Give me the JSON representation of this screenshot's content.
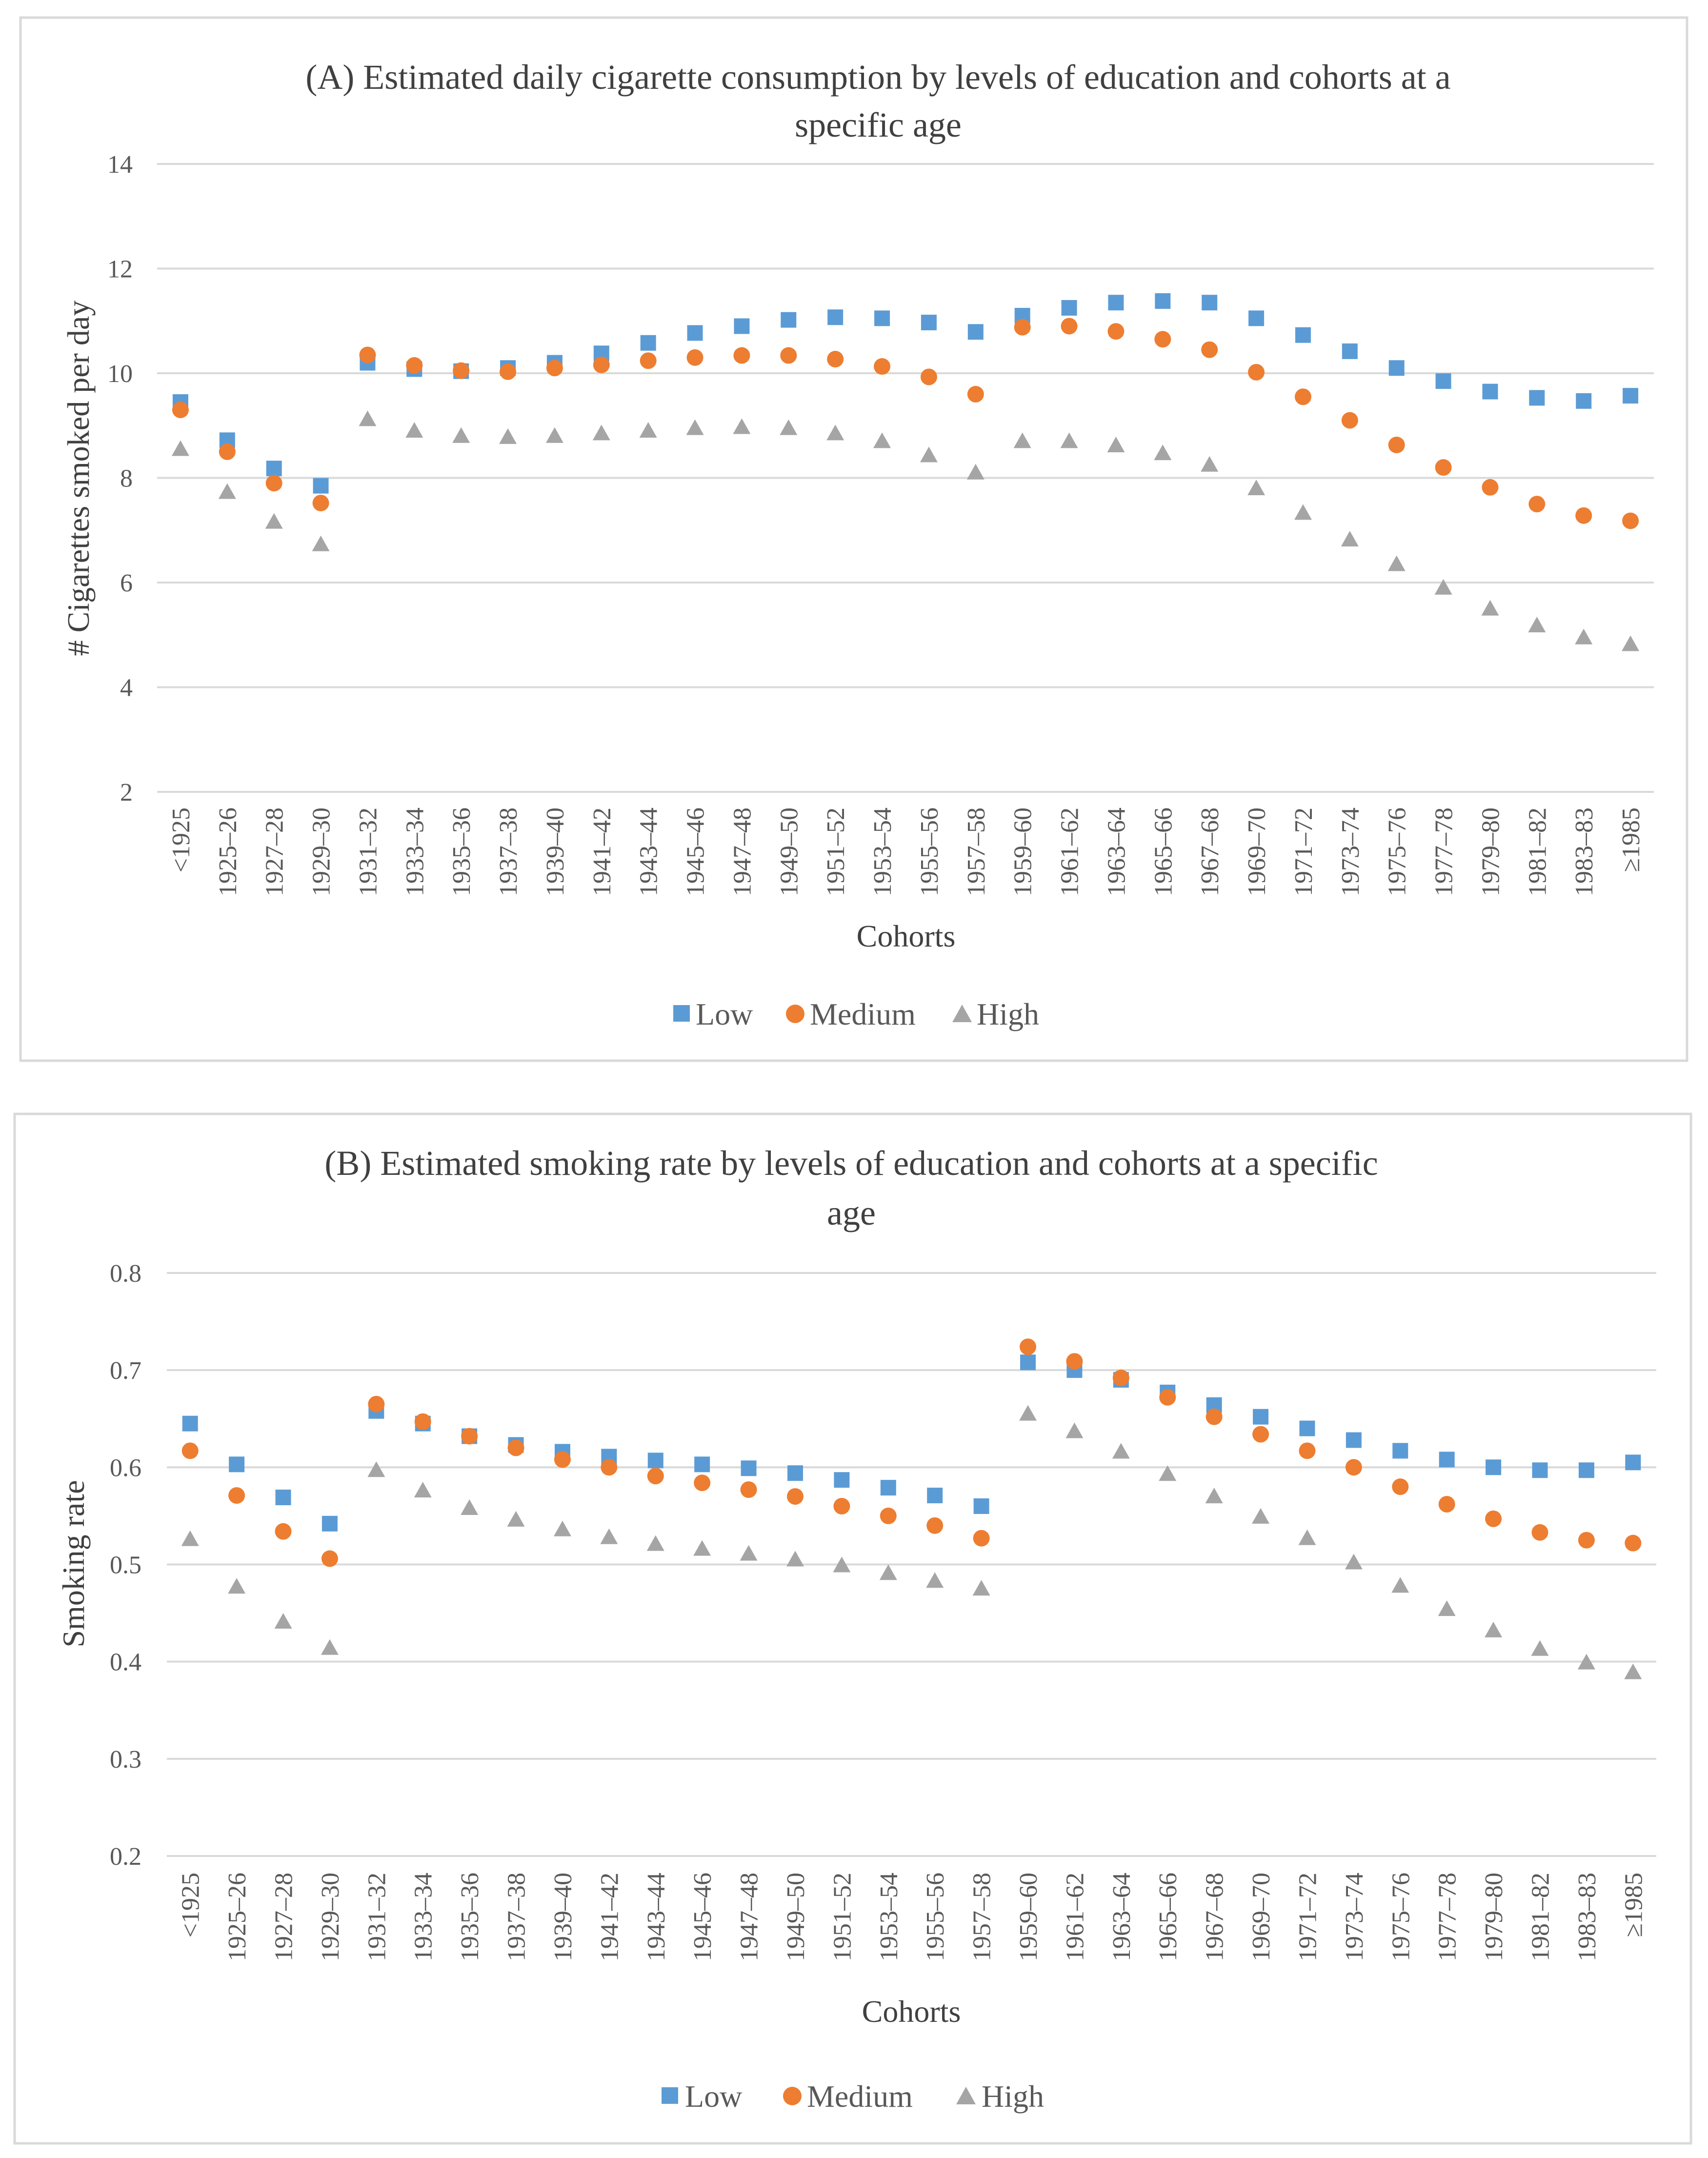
{
  "colors": {
    "low": "#5b9bd5",
    "medium": "#ed7d31",
    "high": "#a5a5a5"
  },
  "chart_data": [
    {
      "type": "scatter",
      "title_line1": "(A) Estimated daily cigarette consumption by levels of education and cohorts at a",
      "title_line2": "specific age",
      "xlabel": "Cohorts",
      "ylabel": "# Cigarettes smoked per day",
      "ylim": [
        2,
        14
      ],
      "yticks": [
        "2",
        "4",
        "6",
        "8",
        "10",
        "12",
        "14"
      ],
      "legend_position": "bottom",
      "grid": true,
      "categories": [
        "<1925",
        "1925–26",
        "1927–28",
        "1929–30",
        "1931–32",
        "1933–34",
        "1935–36",
        "1937–38",
        "1939–40",
        "1941–42",
        "1943–44",
        "1945–46",
        "1947–48",
        "1949–50",
        "1951–52",
        "1953–54",
        "1955–56",
        "1957–58",
        "1959–60",
        "1961–62",
        "1963–64",
        "1965–66",
        "1967–68",
        "1969–70",
        "1971–72",
        "1973–74",
        "1975–76",
        "1977–78",
        "1979–80",
        "1981–82",
        "1983–83",
        "≥1985"
      ],
      "series": [
        {
          "name": "Low",
          "marker": "square",
          "values": [
            9.45,
            8.72,
            8.18,
            7.85,
            10.2,
            10.08,
            10.04,
            10.1,
            10.2,
            10.38,
            10.58,
            10.77,
            10.9,
            11.02,
            11.07,
            11.05,
            10.97,
            10.79,
            11.1,
            11.25,
            11.35,
            11.38,
            11.35,
            11.05,
            10.73,
            10.42,
            10.1,
            9.85,
            9.65,
            9.53,
            9.47,
            9.57
          ]
        },
        {
          "name": "Medium",
          "marker": "circle",
          "values": [
            9.3,
            8.5,
            7.9,
            7.52,
            10.35,
            10.15,
            10.05,
            10.03,
            10.1,
            10.16,
            10.24,
            10.3,
            10.34,
            10.34,
            10.27,
            10.13,
            9.93,
            9.6,
            10.88,
            10.9,
            10.8,
            10.65,
            10.45,
            10.02,
            9.55,
            9.1,
            8.63,
            8.2,
            7.82,
            7.5,
            7.28,
            7.18
          ]
        },
        {
          "name": "High",
          "marker": "triangle",
          "values": [
            8.55,
            7.73,
            7.16,
            6.73,
            9.12,
            8.9,
            8.8,
            8.78,
            8.8,
            8.85,
            8.9,
            8.95,
            8.97,
            8.95,
            8.85,
            8.7,
            8.43,
            8.1,
            8.7,
            8.7,
            8.62,
            8.47,
            8.25,
            7.8,
            7.33,
            6.82,
            6.35,
            5.9,
            5.5,
            5.18,
            4.95,
            4.82
          ]
        }
      ]
    },
    {
      "type": "scatter",
      "title_line1": "(B) Estimated smoking rate by levels of education and cohorts at a specific",
      "title_line2": "age",
      "xlabel": "Cohorts",
      "ylabel": "Smoking rate",
      "ylim": [
        0.2,
        0.8
      ],
      "yticks": [
        "0.2",
        "0.3",
        "0.4",
        "0.5",
        "0.6",
        "0.7",
        "0.8"
      ],
      "legend_position": "bottom",
      "grid": true,
      "categories": [
        "<1925",
        "1925–26",
        "1927–28",
        "1929–30",
        "1931–32",
        "1933–34",
        "1935–36",
        "1937–38",
        "1939–40",
        "1941–42",
        "1943–44",
        "1945–46",
        "1947–48",
        "1949–50",
        "1951–52",
        "1953–54",
        "1955–56",
        "1957–58",
        "1959–60",
        "1961–62",
        "1963–64",
        "1965–66",
        "1967–68",
        "1969–70",
        "1971–72",
        "1973–74",
        "1975–76",
        "1977–78",
        "1979–80",
        "1981–82",
        "1983–83",
        "≥1985"
      ],
      "series": [
        {
          "name": "Low",
          "marker": "square",
          "values": [
            0.645,
            0.603,
            0.569,
            0.542,
            0.658,
            0.645,
            0.632,
            0.623,
            0.616,
            0.611,
            0.607,
            0.603,
            0.599,
            0.594,
            0.587,
            0.579,
            0.571,
            0.56,
            0.708,
            0.7,
            0.69,
            0.677,
            0.664,
            0.652,
            0.64,
            0.628,
            0.617,
            0.608,
            0.6,
            0.597,
            0.597,
            0.605
          ]
        },
        {
          "name": "Medium",
          "marker": "circle",
          "values": [
            0.617,
            0.571,
            0.534,
            0.506,
            0.665,
            0.647,
            0.632,
            0.62,
            0.608,
            0.6,
            0.591,
            0.584,
            0.577,
            0.57,
            0.56,
            0.55,
            0.54,
            0.527,
            0.724,
            0.709,
            0.692,
            0.672,
            0.652,
            0.634,
            0.617,
            0.6,
            0.58,
            0.562,
            0.547,
            0.533,
            0.525,
            0.522
          ]
        },
        {
          "name": "High",
          "marker": "triangle",
          "values": [
            0.526,
            0.477,
            0.441,
            0.414,
            0.597,
            0.576,
            0.558,
            0.546,
            0.536,
            0.528,
            0.521,
            0.516,
            0.511,
            0.505,
            0.499,
            0.491,
            0.483,
            0.475,
            0.655,
            0.637,
            0.616,
            0.593,
            0.57,
            0.549,
            0.527,
            0.502,
            0.478,
            0.454,
            0.432,
            0.413,
            0.399,
            0.389
          ]
        }
      ]
    }
  ]
}
